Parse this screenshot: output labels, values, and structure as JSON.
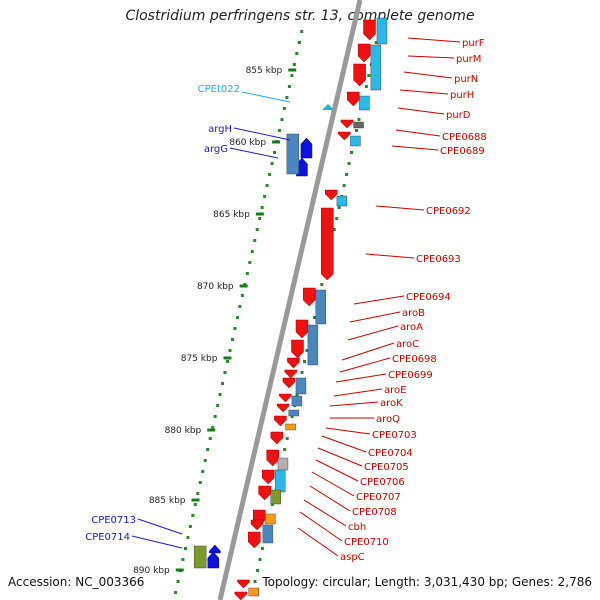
{
  "title": "Clostridium perfringens str. 13, complete genome",
  "footer": {
    "accession": "Accession: NC_003366",
    "summary": "Topology: circular; Length: 3,031,430 bp; Genes: 2,786"
  },
  "colors": {
    "forward_cds": "#1010e0",
    "reverse_cds": "#ee1111",
    "forward_label": "#1a1ad0",
    "reverse_label": "#cc0000",
    "trna_label": "#22b0d8",
    "backbone": "#999999",
    "tick_green": "#2a8a2a",
    "feature_blue": "#4a86c0",
    "feature_cyan": "#2ab8e6",
    "feature_orange": "#f59a1a",
    "feature_olive": "#7a9a2a",
    "feature_gray": "#b0b0b0"
  },
  "chart_data": {
    "type": "genome-map",
    "kbp_labels": [
      "855 kbp",
      "860 kbp",
      "865 kbp",
      "870 kbp",
      "875 kbp",
      "880 kbp",
      "885 kbp",
      "890 kbp"
    ],
    "reverse_genes": [
      "purF",
      "purM",
      "purN",
      "purH",
      "purD",
      "CPE0688",
      "CPE0689",
      "CPE0692",
      "CPE0693",
      "CPE0694",
      "aroB",
      "aroA",
      "aroC",
      "CPE0698",
      "CPE0699",
      "aroE",
      "aroK",
      "aroQ",
      "CPE0703",
      "CPE0704",
      "CPE0705",
      "CPE0706",
      "CPE0707",
      "CPE0708",
      "cbh",
      "CPE0710",
      "aspC"
    ],
    "forward_genes": [
      "argH",
      "argG",
      "CPE0713",
      "CPE0714"
    ],
    "trna": [
      "CPEt022"
    ]
  }
}
